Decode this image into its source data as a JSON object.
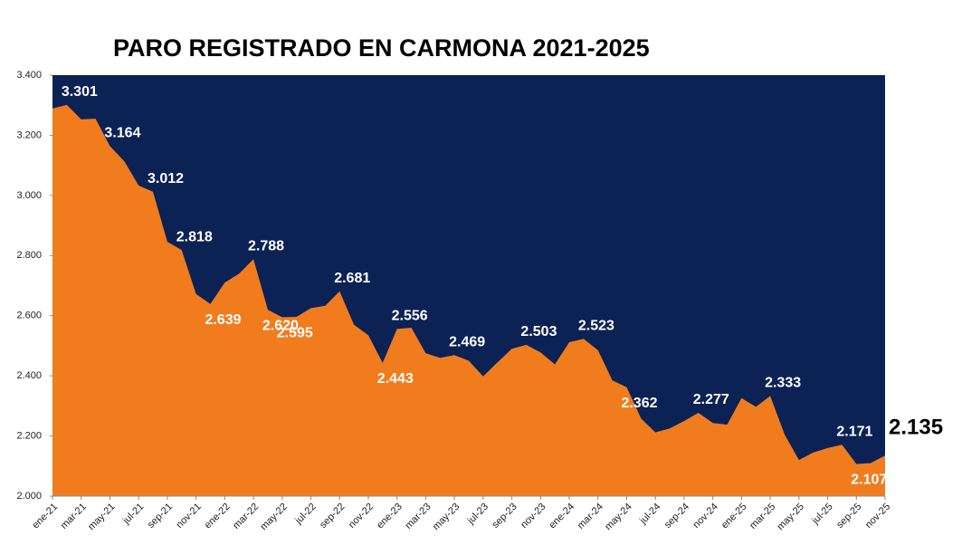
{
  "chart_data": {
    "type": "area",
    "title": "PARO REGISTRADO EN CARMONA 2021-2025",
    "categories": [
      "ene-21",
      null,
      "mar-21",
      null,
      "may-21",
      null,
      "jul-21",
      null,
      "sep-21",
      null,
      "nov-21",
      null,
      "ene-22",
      null,
      "mar-22",
      null,
      "may-22",
      null,
      "jul-22",
      null,
      "sep-22",
      null,
      "nov-22",
      null,
      "ene-23",
      null,
      "mar-23",
      null,
      "may-23",
      null,
      "jul-23",
      null,
      "sep-23",
      null,
      "nov-23",
      null,
      "ene-24",
      null,
      "mar-24",
      null,
      "may-24",
      null,
      "jul-24",
      null,
      "sep-24",
      null,
      "nov-24",
      null,
      "ene-25",
      null,
      "mar-25",
      null,
      "may-25",
      null,
      "jul-25",
      null,
      "sep-25",
      null,
      "nov-25"
    ],
    "values": [
      3289,
      3301,
      3253,
      3255,
      3164,
      3114,
      3033,
      3012,
      2846,
      2818,
      2672,
      2639,
      2710,
      2740,
      2788,
      2620,
      2595,
      2596,
      2625,
      2633,
      2681,
      2570,
      2535,
      2443,
      2556,
      2560,
      2475,
      2460,
      2469,
      2450,
      2398,
      2445,
      2490,
      2503,
      2478,
      2438,
      2512,
      2523,
      2485,
      2385,
      2362,
      2258,
      2212,
      2225,
      2250,
      2277,
      2243,
      2238,
      2326,
      2297,
      2333,
      2205,
      2120,
      2145,
      2160,
      2171,
      2107,
      2110,
      2135
    ],
    "value_labels": [
      null,
      "3.301",
      null,
      null,
      "3.164",
      null,
      null,
      "3.012",
      null,
      "2.818",
      null,
      "2.639",
      null,
      null,
      "2.788",
      "2.620",
      "2.595",
      null,
      null,
      null,
      "2.681",
      null,
      null,
      "2.443",
      "2.556",
      null,
      null,
      null,
      "2.469",
      null,
      null,
      null,
      null,
      "2.503",
      null,
      null,
      null,
      "2.523",
      null,
      null,
      "2.362",
      null,
      null,
      null,
      null,
      "2.277",
      null,
      null,
      null,
      null,
      "2.333",
      null,
      null,
      null,
      null,
      "2.171",
      "2.107",
      null,
      "2.135"
    ],
    "color": "#f07c1e",
    "background": "#0c2255",
    "ylim": [
      2000,
      3400
    ],
    "yticks": [
      {
        "value": 2000,
        "label": "2.000"
      },
      {
        "value": 2200,
        "label": "2.200"
      },
      {
        "value": 2400,
        "label": "2.400"
      },
      {
        "value": 2600,
        "label": "2.600"
      },
      {
        "value": 2800,
        "label": "2.800"
      },
      {
        "value": 3000,
        "label": "3.000"
      },
      {
        "value": 3200,
        "label": "3.200"
      },
      {
        "value": 3400,
        "label": "3.400"
      }
    ]
  }
}
